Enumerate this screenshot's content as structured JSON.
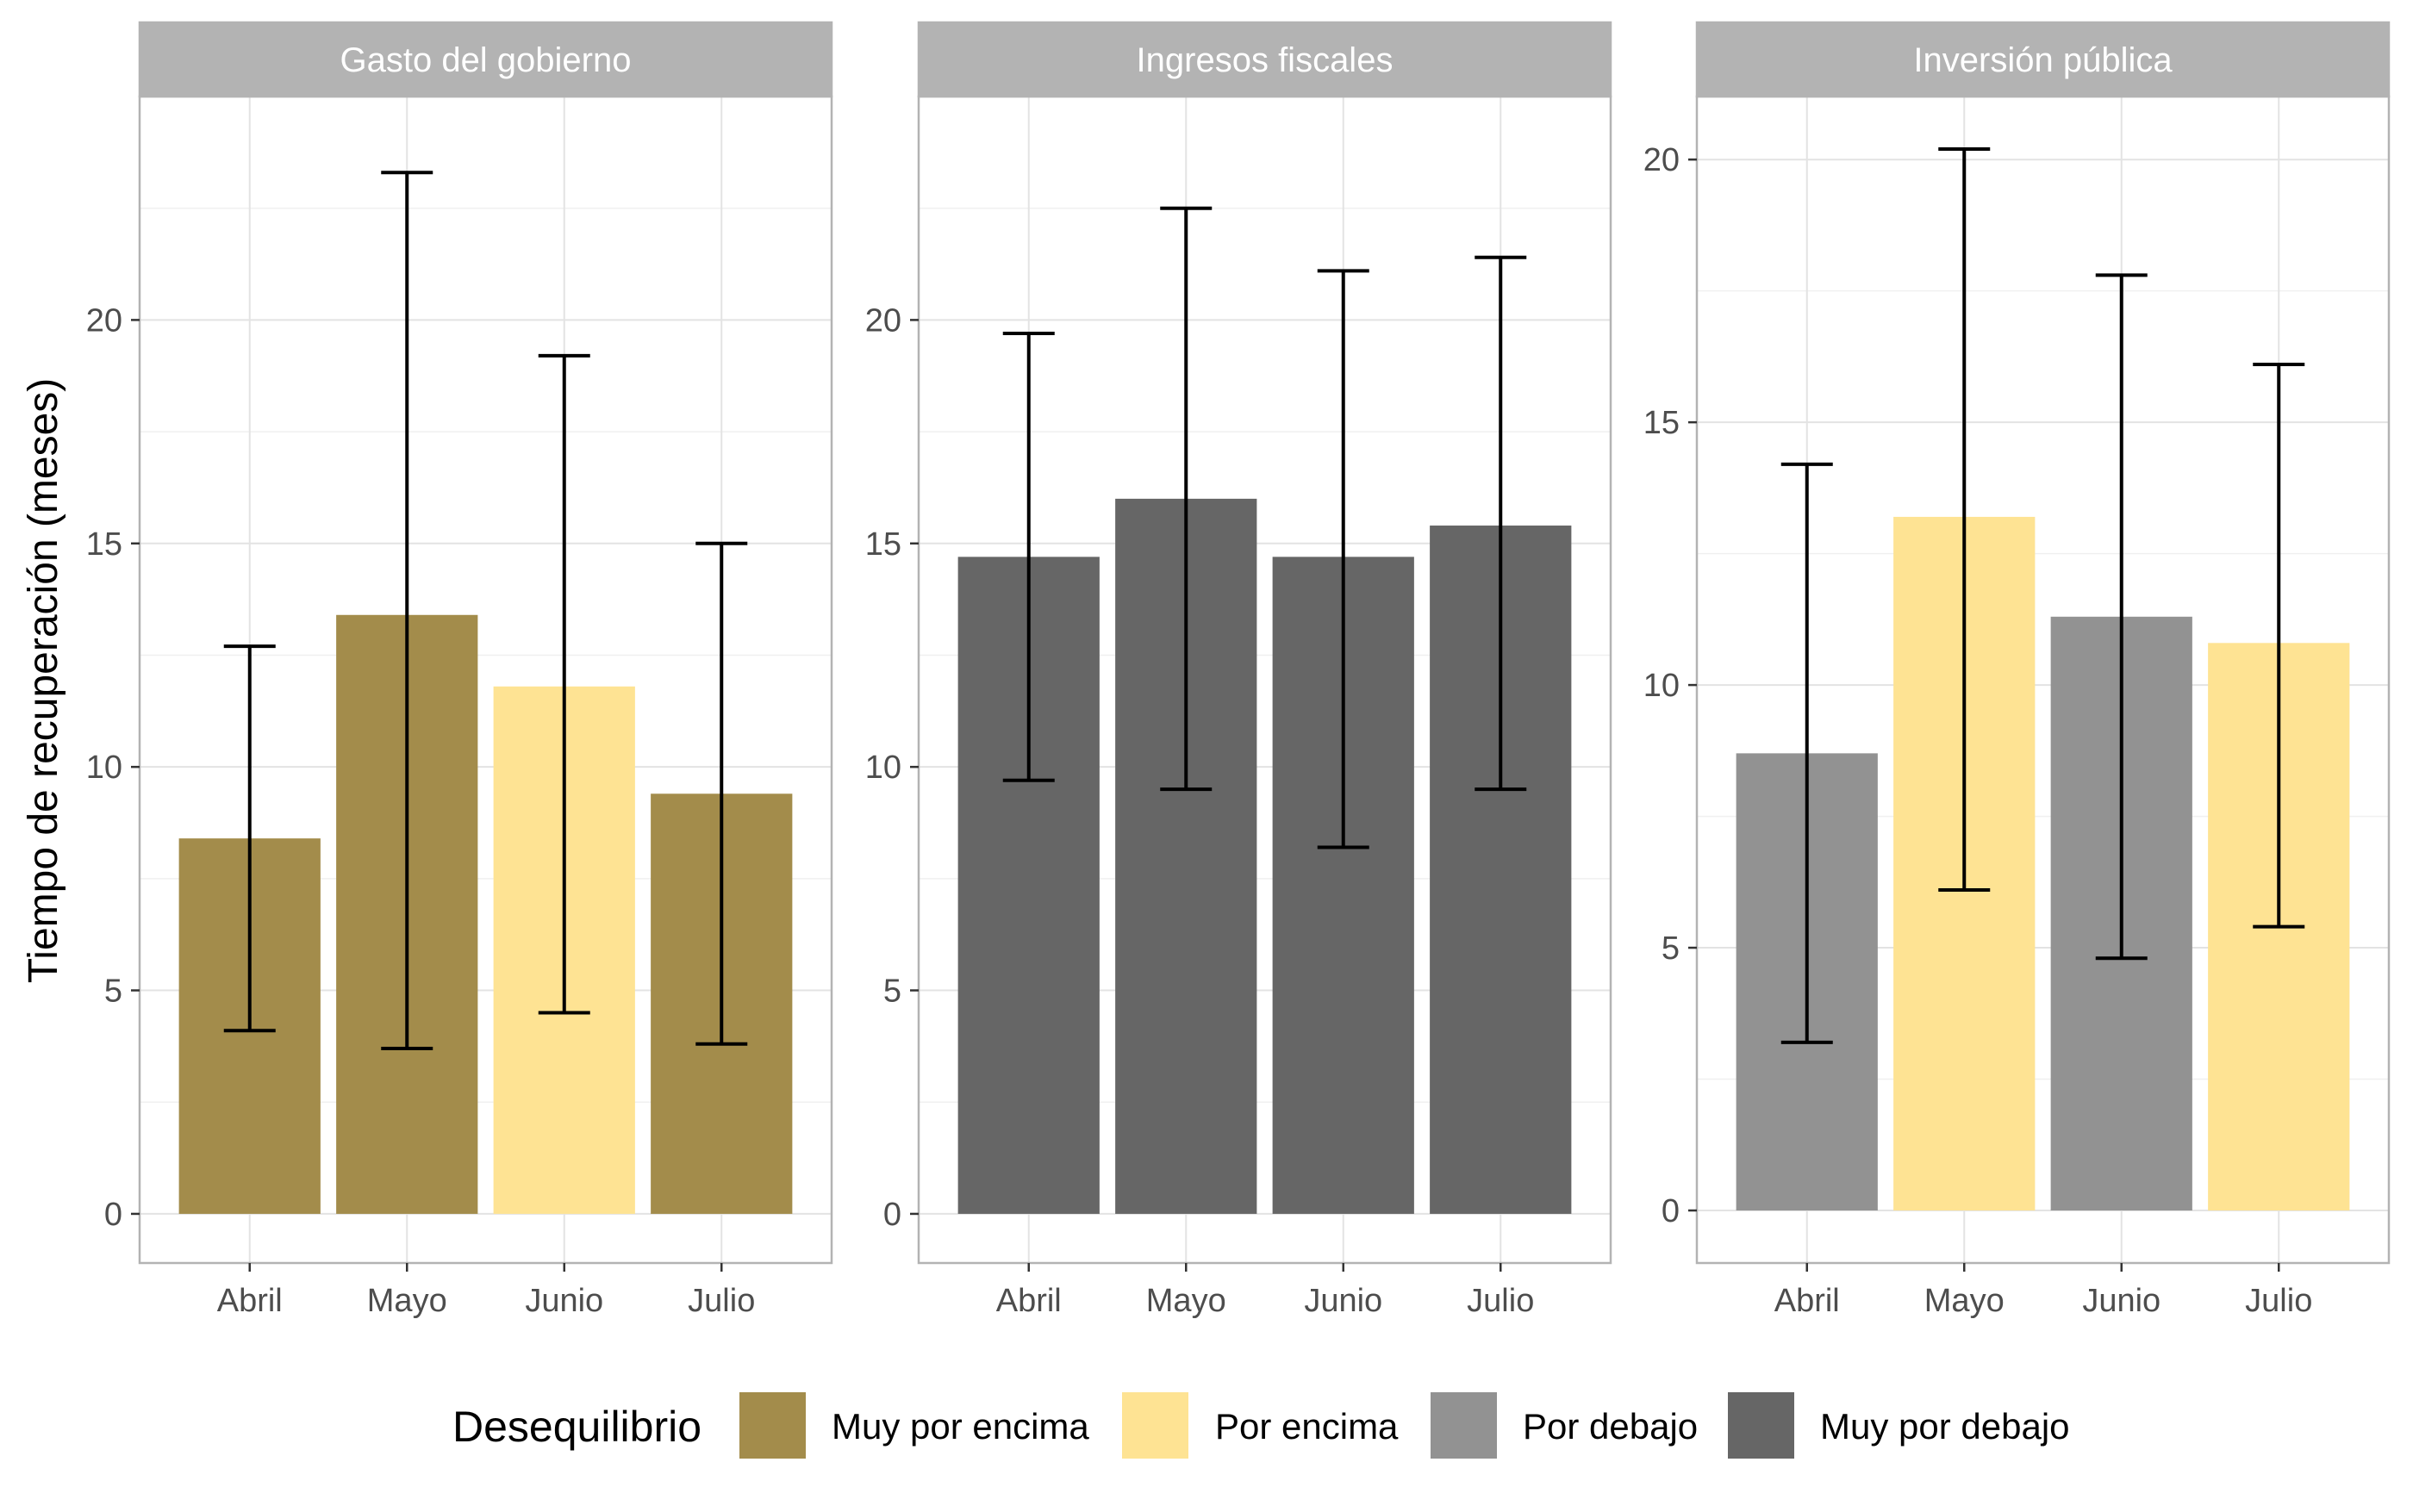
{
  "chart_data": {
    "type": "bar",
    "ylabel": "Tiempo de recuperación (meses)",
    "xlabel": "",
    "categories": [
      "Abril",
      "Mayo",
      "Junio",
      "Julio"
    ],
    "legend": {
      "title": "Desequilibrio",
      "position": "bottom",
      "items": [
        {
          "label": "Muy por encima",
          "color": "#a38c4b"
        },
        {
          "label": "Por encima",
          "color": "#fee393"
        },
        {
          "label": "Por debajo",
          "color": "#929292"
        },
        {
          "label": "Muy por debajo",
          "color": "#666666"
        }
      ]
    },
    "grid": true,
    "panels": [
      {
        "title": "Gasto del gobierno",
        "ylim": [
          -1.1,
          25
        ],
        "yticks": [
          0,
          5,
          10,
          15,
          20
        ],
        "bars": [
          {
            "category": "Abril",
            "value": 8.4,
            "low": 4.1,
            "high": 12.7,
            "group": "Muy por encima"
          },
          {
            "category": "Mayo",
            "value": 13.4,
            "low": 3.7,
            "high": 23.3,
            "group": "Muy por encima"
          },
          {
            "category": "Junio",
            "value": 11.8,
            "low": 4.5,
            "high": 19.2,
            "group": "Por encima"
          },
          {
            "category": "Julio",
            "value": 9.4,
            "low": 3.8,
            "high": 15.0,
            "group": "Muy por encima"
          }
        ]
      },
      {
        "title": "Ingresos fiscales",
        "ylim": [
          -1.1,
          25
        ],
        "yticks": [
          0,
          5,
          10,
          15,
          20
        ],
        "bars": [
          {
            "category": "Abril",
            "value": 14.7,
            "low": 9.7,
            "high": 19.7,
            "group": "Muy por debajo"
          },
          {
            "category": "Mayo",
            "value": 16.0,
            "low": 9.5,
            "high": 22.5,
            "group": "Muy por debajo"
          },
          {
            "category": "Junio",
            "value": 14.7,
            "low": 8.2,
            "high": 21.1,
            "group": "Muy por debajo"
          },
          {
            "category": "Julio",
            "value": 15.4,
            "low": 9.5,
            "high": 21.4,
            "group": "Muy por debajo"
          }
        ]
      },
      {
        "title": "Inversión pública",
        "ylim": [
          -1.0,
          21.2
        ],
        "yticks": [
          0,
          5,
          10,
          15,
          20
        ],
        "bars": [
          {
            "category": "Abril",
            "value": 8.7,
            "low": 3.2,
            "high": 14.2,
            "group": "Por debajo"
          },
          {
            "category": "Mayo",
            "value": 13.2,
            "low": 6.1,
            "high": 20.2,
            "group": "Por encima"
          },
          {
            "category": "Junio",
            "value": 11.3,
            "low": 4.8,
            "high": 17.8,
            "group": "Por debajo"
          },
          {
            "category": "Julio",
            "value": 10.8,
            "low": 5.4,
            "high": 16.1,
            "group": "Por encima"
          }
        ]
      }
    ]
  }
}
